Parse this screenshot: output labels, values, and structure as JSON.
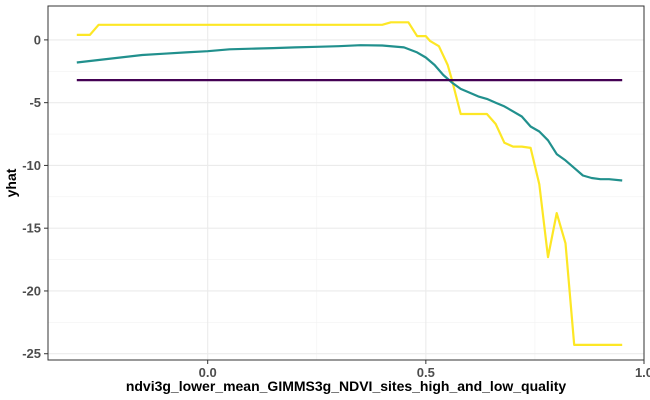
{
  "chart_data": {
    "type": "line",
    "xlabel": "ndvi3g_lower_mean_GIMMS3g_NDVI_sites_high_and_low_quality",
    "ylabel": "yhat",
    "xlim": [
      -0.366,
      1.0
    ],
    "ylim": [
      -25.5,
      2.7
    ],
    "x_ticks": [
      0.0,
      0.5,
      1.0
    ],
    "x_tick_labels": [
      "0.0",
      "0.5",
      "1.0"
    ],
    "y_ticks": [
      0,
      -5,
      -10,
      -15,
      -20,
      -25
    ],
    "y_tick_labels": [
      "0",
      "-5",
      "-10",
      "-15",
      "-20",
      "-25"
    ],
    "grid": true,
    "series": [
      {
        "color": "#fde725",
        "x": [
          -0.3,
          -0.27,
          -0.25,
          -0.2,
          -0.1,
          0.0,
          0.1,
          0.2,
          0.3,
          0.4,
          0.42,
          0.44,
          0.46,
          0.48,
          0.49,
          0.5,
          0.51,
          0.53,
          0.55,
          0.56,
          0.58,
          0.6,
          0.62,
          0.64,
          0.66,
          0.68,
          0.7,
          0.72,
          0.74,
          0.76,
          0.78,
          0.8,
          0.82,
          0.84,
          0.86,
          0.88,
          0.95
        ],
        "y": [
          0.4,
          0.4,
          1.2,
          1.2,
          1.2,
          1.2,
          1.2,
          1.2,
          1.2,
          1.2,
          1.4,
          1.4,
          1.4,
          0.3,
          0.3,
          0.3,
          -0.1,
          -0.5,
          -2.0,
          -3.2,
          -5.9,
          -5.9,
          -5.9,
          -5.9,
          -6.7,
          -8.2,
          -8.5,
          -8.5,
          -8.6,
          -11.5,
          -17.3,
          -13.8,
          -16.2,
          -24.3,
          -24.3,
          -24.3,
          -24.3
        ]
      },
      {
        "color": "#21908d",
        "x": [
          -0.3,
          -0.25,
          -0.2,
          -0.15,
          -0.1,
          -0.05,
          0.0,
          0.05,
          0.1,
          0.15,
          0.2,
          0.25,
          0.3,
          0.35,
          0.4,
          0.45,
          0.48,
          0.5,
          0.52,
          0.54,
          0.56,
          0.58,
          0.6,
          0.62,
          0.64,
          0.66,
          0.68,
          0.7,
          0.72,
          0.74,
          0.76,
          0.78,
          0.8,
          0.82,
          0.84,
          0.86,
          0.88,
          0.9,
          0.92,
          0.95
        ],
        "y": [
          -1.8,
          -1.6,
          -1.4,
          -1.2,
          -1.1,
          -1.0,
          -0.9,
          -0.75,
          -0.7,
          -0.65,
          -0.6,
          -0.55,
          -0.5,
          -0.42,
          -0.45,
          -0.6,
          -1.0,
          -1.4,
          -2.0,
          -2.8,
          -3.4,
          -3.9,
          -4.2,
          -4.5,
          -4.7,
          -5.0,
          -5.3,
          -5.7,
          -6.1,
          -6.9,
          -7.3,
          -8.0,
          -9.1,
          -9.6,
          -10.2,
          -10.8,
          -11.0,
          -11.1,
          -11.1,
          -11.2
        ]
      },
      {
        "color": "#440154",
        "x": [
          -0.3,
          0.95
        ],
        "y": [
          -3.2,
          -3.2
        ]
      }
    ]
  }
}
